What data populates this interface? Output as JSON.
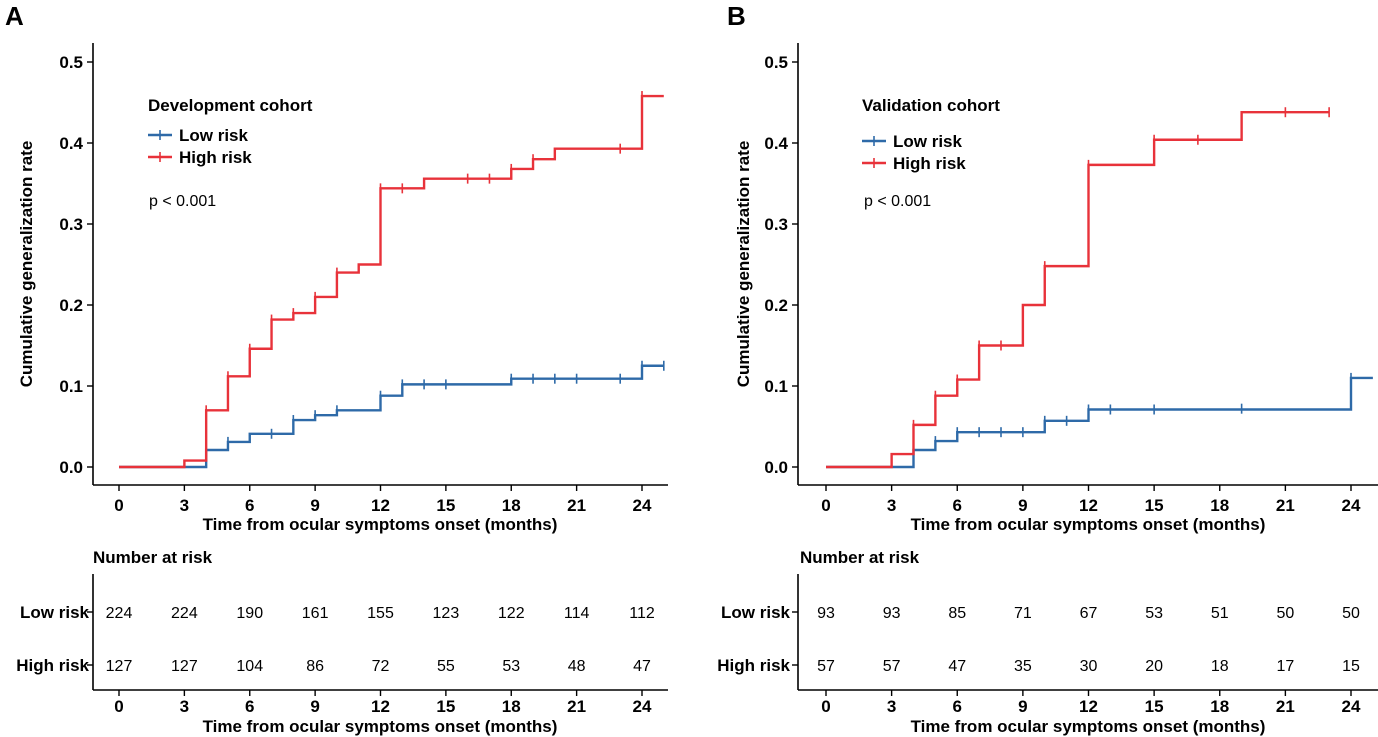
{
  "chart_data": [
    {
      "type": "line",
      "panel_label": "A",
      "legend_title": "Development cohort",
      "p_value": "p < 0.001",
      "xlabel": "Time from ocular symptoms onset (months)",
      "ylabel": "Cumulative generalization rate",
      "xlim": [
        -1,
        25
      ],
      "ylim": [
        0,
        0.5
      ],
      "x_ticks": [
        "0",
        "3",
        "6",
        "9",
        "12",
        "15",
        "18",
        "21",
        "24"
      ],
      "y_ticks": [
        "0.0",
        "0.1",
        "0.2",
        "0.3",
        "0.4",
        "0.5"
      ],
      "series": [
        {
          "name": "Low risk",
          "color": "#2e6aa8",
          "steps": [
            [
              0,
              0
            ],
            [
              4,
              0.021
            ],
            [
              5,
              0.031
            ],
            [
              6,
              0.041
            ],
            [
              8,
              0.058
            ],
            [
              9,
              0.064
            ],
            [
              10,
              0.07
            ],
            [
              12,
              0.088
            ],
            [
              13,
              0.102
            ],
            [
              18,
              0.109
            ],
            [
              24,
              0.125
            ],
            [
              25,
              0.125
            ]
          ],
          "censored": [
            [
              5,
              0.031
            ],
            [
              7,
              0.041
            ],
            [
              8,
              0.058
            ],
            [
              9,
              0.064
            ],
            [
              10,
              0.07
            ],
            [
              12,
              0.088
            ],
            [
              13,
              0.102
            ],
            [
              14,
              0.102
            ],
            [
              15,
              0.102
            ],
            [
              18,
              0.109
            ],
            [
              19,
              0.109
            ],
            [
              20,
              0.109
            ],
            [
              21,
              0.109
            ],
            [
              23,
              0.109
            ],
            [
              24,
              0.125
            ],
            [
              25,
              0.125
            ]
          ]
        },
        {
          "name": "High risk",
          "color": "#e8323a",
          "steps": [
            [
              0,
              0
            ],
            [
              3,
              0.008
            ],
            [
              4,
              0.07
            ],
            [
              5,
              0.112
            ],
            [
              6,
              0.146
            ],
            [
              7,
              0.182
            ],
            [
              8,
              0.19
            ],
            [
              9,
              0.21
            ],
            [
              10,
              0.24
            ],
            [
              11,
              0.25
            ],
            [
              12,
              0.344
            ],
            [
              14,
              0.356
            ],
            [
              18,
              0.368
            ],
            [
              19,
              0.38
            ],
            [
              20,
              0.393
            ],
            [
              24,
              0.458
            ],
            [
              25,
              0.458
            ]
          ],
          "censored": [
            [
              4,
              0.07
            ],
            [
              5,
              0.112
            ],
            [
              6,
              0.146
            ],
            [
              7,
              0.182
            ],
            [
              8,
              0.19
            ],
            [
              9,
              0.21
            ],
            [
              10,
              0.24
            ],
            [
              12,
              0.344
            ],
            [
              13,
              0.344
            ],
            [
              16,
              0.356
            ],
            [
              17,
              0.356
            ],
            [
              18,
              0.368
            ],
            [
              19,
              0.38
            ],
            [
              23,
              0.393
            ],
            [
              24,
              0.458
            ]
          ]
        }
      ],
      "risk_table": {
        "title": "Number at risk",
        "rows": [
          {
            "label": "Low risk",
            "values": [
              "224",
              "224",
              "190",
              "161",
              "155",
              "123",
              "122",
              "114",
              "112"
            ]
          },
          {
            "label": "High risk",
            "values": [
              "127",
              "127",
              "104",
              "86",
              "72",
              "55",
              "53",
              "48",
              "47"
            ]
          }
        ],
        "xlabel": "Time from ocular symptoms onset (months)"
      }
    },
    {
      "type": "line",
      "panel_label": "B",
      "legend_title": "Validation cohort",
      "p_value": "p < 0.001",
      "xlabel": "Time from ocular symptoms onset (months)",
      "ylabel": "Cumulative generalization rate",
      "xlim": [
        -1,
        25
      ],
      "ylim": [
        0,
        0.5
      ],
      "x_ticks": [
        "0",
        "3",
        "6",
        "9",
        "12",
        "15",
        "18",
        "21",
        "24"
      ],
      "y_ticks": [
        "0.0",
        "0.1",
        "0.2",
        "0.3",
        "0.4",
        "0.5"
      ],
      "series": [
        {
          "name": "Low risk",
          "color": "#2e6aa8",
          "steps": [
            [
              0,
              0
            ],
            [
              4,
              0.021
            ],
            [
              5,
              0.032
            ],
            [
              6,
              0.043
            ],
            [
              10,
              0.057
            ],
            [
              12,
              0.071
            ],
            [
              24,
              0.11
            ],
            [
              25,
              0.11
            ]
          ],
          "censored": [
            [
              5,
              0.032
            ],
            [
              6,
              0.043
            ],
            [
              7,
              0.043
            ],
            [
              8,
              0.043
            ],
            [
              9,
              0.043
            ],
            [
              10,
              0.057
            ],
            [
              11,
              0.057
            ],
            [
              12,
              0.071
            ],
            [
              13,
              0.071
            ],
            [
              15,
              0.071
            ],
            [
              19,
              0.072
            ],
            [
              24,
              0.11
            ]
          ]
        },
        {
          "name": "High risk",
          "color": "#e8323a",
          "steps": [
            [
              0,
              0
            ],
            [
              3,
              0.016
            ],
            [
              4,
              0.052
            ],
            [
              5,
              0.088
            ],
            [
              6,
              0.108
            ],
            [
              7,
              0.15
            ],
            [
              9,
              0.2
            ],
            [
              10,
              0.248
            ],
            [
              12,
              0.373
            ],
            [
              15,
              0.404
            ],
            [
              19,
              0.438
            ],
            [
              23,
              0.438
            ]
          ],
          "censored": [
            [
              4,
              0.052
            ],
            [
              5,
              0.088
            ],
            [
              6,
              0.108
            ],
            [
              7,
              0.15
            ],
            [
              8,
              0.15
            ],
            [
              10,
              0.248
            ],
            [
              12,
              0.373
            ],
            [
              15,
              0.404
            ],
            [
              17,
              0.404
            ],
            [
              21,
              0.438
            ],
            [
              23,
              0.438
            ]
          ]
        }
      ],
      "risk_table": {
        "title": "Number at risk",
        "rows": [
          {
            "label": "Low risk",
            "values": [
              "93",
              "93",
              "85",
              "71",
              "67",
              "53",
              "51",
              "50",
              "50"
            ]
          },
          {
            "label": "High risk",
            "values": [
              "57",
              "57",
              "47",
              "35",
              "30",
              "20",
              "18",
              "17",
              "15"
            ]
          }
        ],
        "xlabel": "Time from ocular symptoms onset (months)"
      }
    }
  ]
}
